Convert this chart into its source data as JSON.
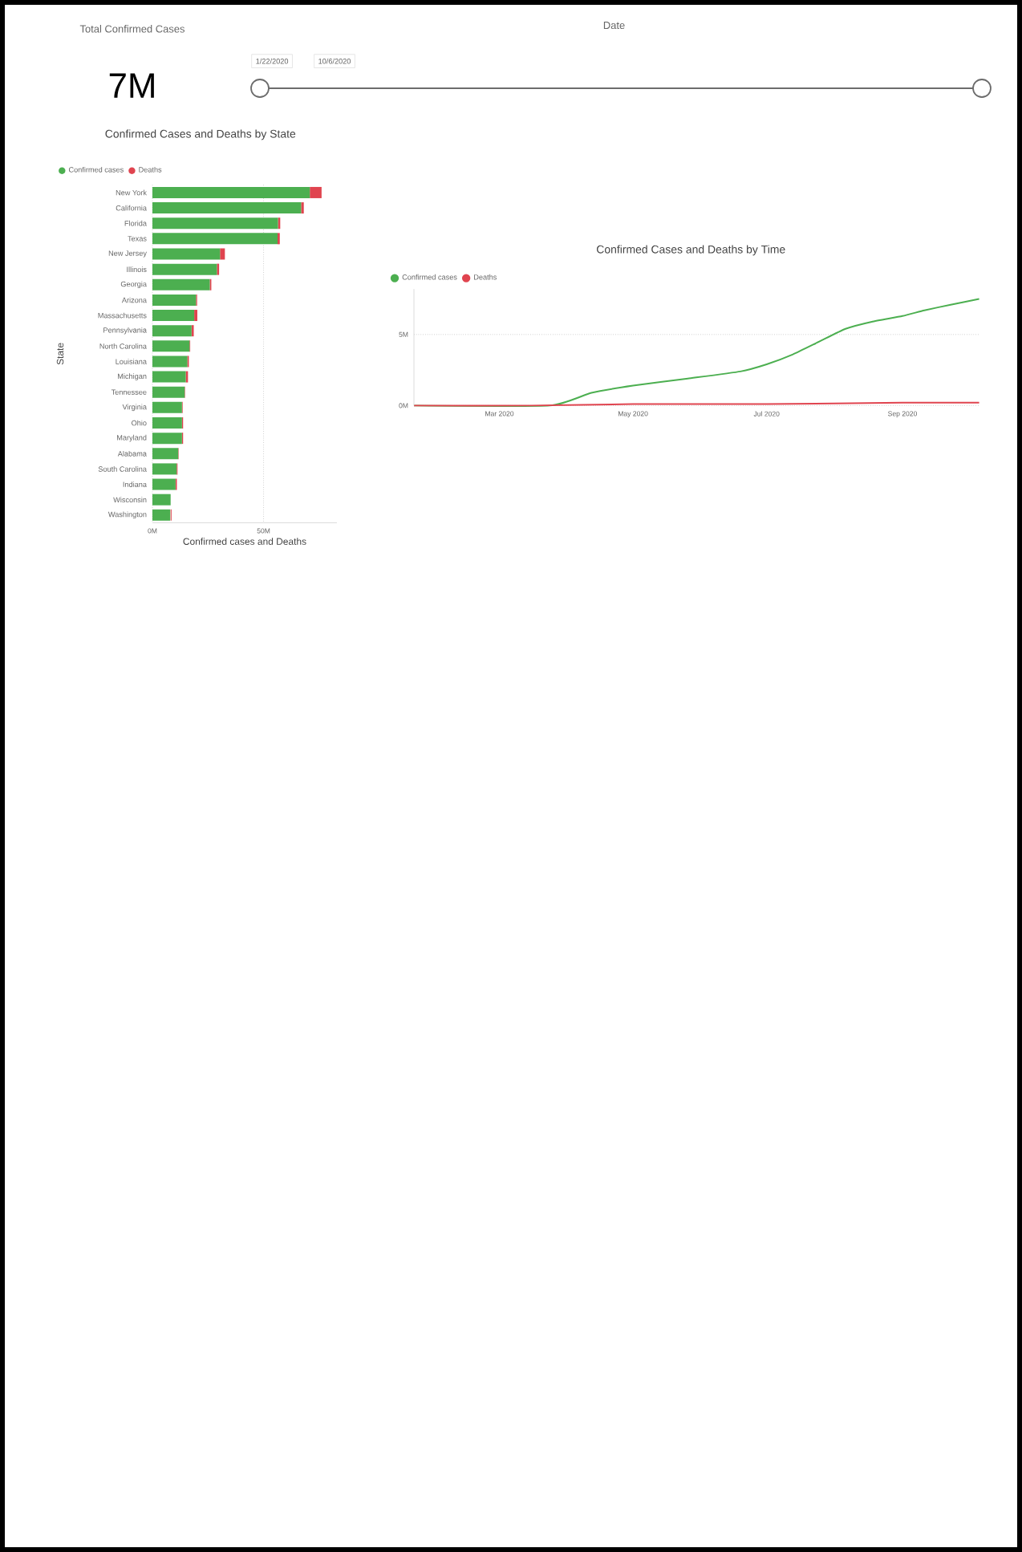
{
  "chart_data": [
    {
      "type": "other",
      "title": "Total Confirmed Cases",
      "annotations": [
        "7M"
      ]
    },
    {
      "type": "other",
      "title": "Date",
      "annotations": [
        "1/22/2020",
        "10/6/2020"
      ]
    },
    {
      "type": "bar",
      "orientation": "horizontal",
      "stacked": true,
      "title": "Confirmed Cases and Deaths by State",
      "xlabel": "Confirmed cases and Deaths",
      "ylabel": "State",
      "categories": [
        "New York",
        "California",
        "Florida",
        "Texas",
        "New Jersey",
        "Illinois",
        "Georgia",
        "Arizona",
        "Massachusetts",
        "Pennsylvania",
        "North Carolina",
        "Louisiana",
        "Michigan",
        "Tennessee",
        "Virginia",
        "Ohio",
        "Maryland",
        "Alabama",
        "South Carolina",
        "Indiana",
        "Wisconsin",
        "Washington"
      ],
      "series": [
        {
          "name": "Confirmed cases",
          "color": "#4caf50",
          "values": [
            70.8,
            66.9,
            56.5,
            56.3,
            30.4,
            29.0,
            25.8,
            19.6,
            18.8,
            17.6,
            16.7,
            15.7,
            15.0,
            14.5,
            13.3,
            13.3,
            13.3,
            11.6,
            10.9,
            10.4,
            8.2,
            8.0
          ]
        },
        {
          "name": "Deaths",
          "color": "#e0444f",
          "values": [
            5.3,
            1.2,
            1.0,
            1.0,
            2.2,
            1.0,
            0.7,
            0.5,
            1.4,
            1.0,
            0.3,
            0.7,
            1.0,
            0.2,
            0.3,
            0.5,
            0.5,
            0.2,
            0.4,
            0.6,
            null,
            0.4
          ]
        }
      ],
      "xlim": [
        0,
        83
      ],
      "xticks": [
        {
          "value": 0,
          "label": "0M"
        },
        {
          "value": 50,
          "label": "50M"
        }
      ],
      "grid": "x",
      "legend": "top left"
    },
    {
      "type": "line",
      "title": "Confirmed Cases and Deaths by Time",
      "series": [
        {
          "name": "Confirmed cases",
          "color": "#4caf50",
          "x": [
            "2020-01-22",
            "2020-03-24",
            "2020-04-12",
            "2020-05-01",
            "2020-05-26",
            "2020-06-19",
            "2020-07-01",
            "2020-07-13",
            "2020-07-25",
            "2020-08-06",
            "2020-08-18",
            "2020-09-01",
            "2020-09-11",
            "2020-09-23",
            "2020-10-06"
          ],
          "values": [
            0,
            0,
            0.9,
            1.4,
            1.9,
            2.4,
            2.9,
            3.6,
            4.5,
            5.4,
            5.9,
            6.3,
            6.7,
            7.1,
            7.5
          ]
        },
        {
          "name": "Deaths",
          "color": "#e0444f",
          "x": [
            "2020-01-22",
            "2020-03-15",
            "2020-05-01",
            "2020-07-01",
            "2020-09-01",
            "2020-10-06"
          ],
          "values": [
            0,
            0,
            0.1,
            0.1,
            0.2,
            0.2
          ]
        }
      ],
      "xlim": [
        "2020-01-22",
        "2020-10-06"
      ],
      "xticks": [
        {
          "value": "2020-03-01",
          "label": "Mar 2020"
        },
        {
          "value": "2020-05-01",
          "label": "May 2020"
        },
        {
          "value": "2020-07-01",
          "label": "Jul 2020"
        },
        {
          "value": "2020-09-01",
          "label": "Sep 2020"
        }
      ],
      "ylim": [
        0,
        8.2
      ],
      "yticks": [
        {
          "value": 0,
          "label": "0M"
        },
        {
          "value": 5,
          "label": "5M"
        }
      ],
      "grid": "y",
      "legend": "top left"
    }
  ]
}
